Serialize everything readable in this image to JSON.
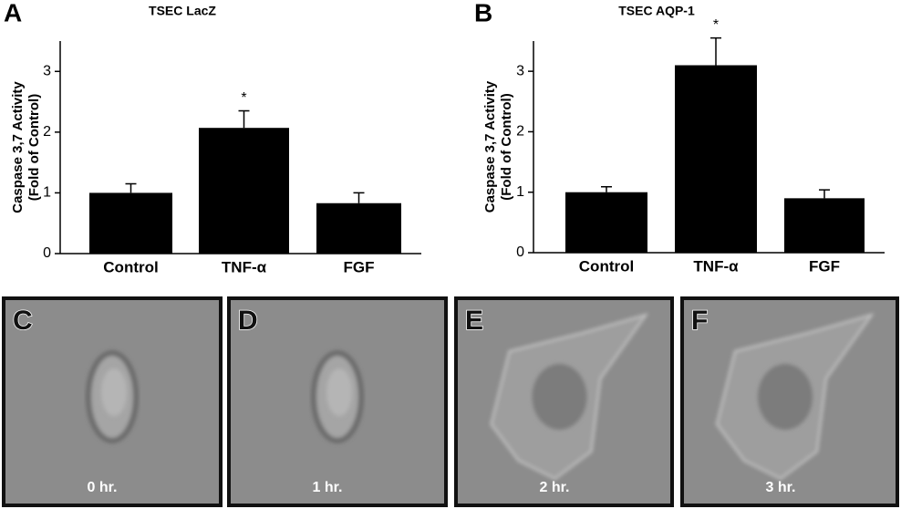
{
  "chart_data": [
    {
      "type": "bar",
      "panel": "A",
      "title": "TSEC LacZ",
      "ylabel": [
        "Caspase 3,7 Activity",
        "(Fold of Control)"
      ],
      "categories": [
        "Control",
        "TNF-α",
        "FGF"
      ],
      "values": [
        1.0,
        2.07,
        0.83
      ],
      "errors": [
        0.15,
        0.28,
        0.17
      ],
      "color": "#000000",
      "ylim": [
        0,
        3.5
      ],
      "yticks": [
        0,
        1,
        2,
        3
      ],
      "annotation": {
        "text": "*",
        "category": "TNF-α"
      }
    },
    {
      "type": "bar",
      "panel": "B",
      "title": "TSEC AQP-1",
      "ylabel": [
        "Caspase 3,7 Activity",
        "(Fold of Control)"
      ],
      "categories": [
        "Control",
        "TNF-α",
        "FGF"
      ],
      "values": [
        1.0,
        3.1,
        0.9
      ],
      "errors": [
        0.09,
        0.45,
        0.14
      ],
      "color": "#000000",
      "ylim": [
        0,
        3.5
      ],
      "yticks": [
        0,
        1,
        2,
        3
      ],
      "annotation": {
        "text": "*",
        "category": "TNF-α"
      }
    }
  ],
  "images": [
    {
      "panel": "C",
      "caption": "0 hr."
    },
    {
      "panel": "D",
      "caption": "1 hr."
    },
    {
      "panel": "E",
      "caption": "2 hr."
    },
    {
      "panel": "F",
      "caption": "3 hr."
    }
  ]
}
